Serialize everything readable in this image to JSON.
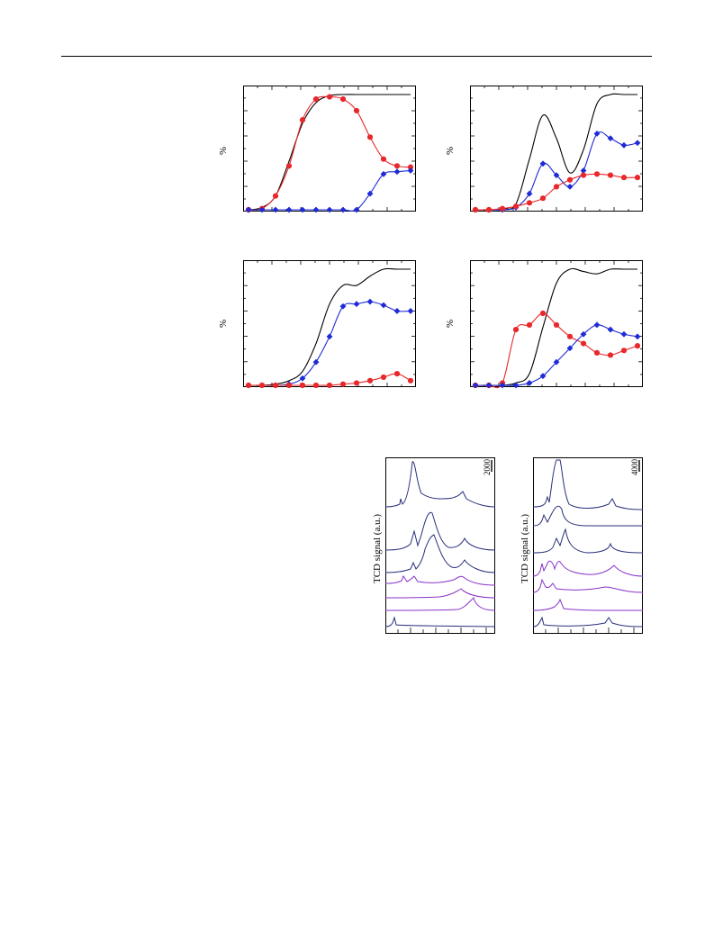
{
  "page": {
    "header_rule": true
  },
  "panels": {
    "p1": {
      "ylabel": "%"
    },
    "p2": {
      "ylabel": "%"
    },
    "p3": {
      "ylabel": "%"
    },
    "p4": {
      "ylabel": "%"
    },
    "tcd1": {
      "ylabel": "TCD signal (a.u.)",
      "scale": "2000"
    },
    "tcd2": {
      "ylabel": "TCD signal (a.u.)",
      "scale": "4000"
    }
  },
  "colors": {
    "red": "#e8282b",
    "blue": "#1f2bd6",
    "black": "#000000",
    "navy": "#28307a",
    "purple": "#8a32c8"
  },
  "chart_data": [
    {
      "type": "line",
      "id": "p1",
      "ylabel": "%",
      "xlim": [
        0,
        12
      ],
      "ylim": [
        0,
        100
      ],
      "series": [
        {
          "color": "black",
          "markers": "none",
          "x": [
            0,
            1,
            2,
            3,
            4,
            5,
            6,
            7,
            8,
            9,
            10,
            11,
            12
          ],
          "values": [
            0,
            2,
            12,
            42,
            75,
            93,
            99,
            100,
            100,
            100,
            100,
            100,
            100
          ]
        },
        {
          "color": "red",
          "markers": "circle",
          "x": [
            0,
            1,
            2,
            3,
            4,
            5,
            6,
            7,
            8,
            9,
            10,
            11,
            12
          ],
          "values": [
            0,
            1,
            12,
            38,
            78,
            96,
            98,
            96,
            86,
            63,
            44,
            38,
            37
          ]
        },
        {
          "color": "blue",
          "markers": "diamond",
          "x": [
            0,
            1,
            2,
            3,
            4,
            5,
            6,
            7,
            8,
            9,
            10,
            11,
            12
          ],
          "values": [
            0,
            0,
            0,
            0,
            0,
            0,
            0,
            0,
            0,
            14,
            31,
            33,
            34
          ]
        }
      ]
    },
    {
      "type": "line",
      "id": "p2",
      "ylabel": "%",
      "xlim": [
        0,
        12
      ],
      "ylim": [
        0,
        100
      ],
      "series": [
        {
          "color": "black",
          "markers": "none",
          "x": [
            0,
            1,
            2,
            3,
            4,
            5,
            6,
            7,
            8,
            9,
            10,
            11,
            12
          ],
          "values": [
            0,
            0,
            1,
            5,
            44,
            82,
            62,
            32,
            52,
            92,
            100,
            100,
            100
          ]
        },
        {
          "color": "blue",
          "markers": "diamond",
          "x": [
            0,
            1,
            2,
            3,
            4,
            5,
            6,
            7,
            8,
            9,
            10,
            11,
            12
          ],
          "values": [
            0,
            0,
            0,
            2,
            14,
            40,
            30,
            20,
            34,
            66,
            62,
            56,
            58
          ]
        },
        {
          "color": "red",
          "markers": "circle",
          "x": [
            0,
            1,
            2,
            3,
            4,
            5,
            6,
            7,
            8,
            9,
            10,
            11,
            12
          ],
          "values": [
            0,
            0,
            1,
            3,
            6,
            10,
            20,
            26,
            30,
            31,
            30,
            28,
            28
          ]
        }
      ]
    },
    {
      "type": "line",
      "id": "p3",
      "ylabel": "%",
      "xlim": [
        0,
        12
      ],
      "ylim": [
        0,
        100
      ],
      "series": [
        {
          "color": "black",
          "markers": "none",
          "x": [
            0,
            1,
            2,
            3,
            4,
            5,
            6,
            7,
            8,
            9,
            10,
            11,
            12
          ],
          "values": [
            0,
            0,
            1,
            4,
            12,
            36,
            70,
            86,
            86,
            94,
            100,
            100,
            100
          ]
        },
        {
          "color": "blue",
          "markers": "diamond",
          "x": [
            0,
            1,
            2,
            3,
            4,
            5,
            6,
            7,
            8,
            9,
            10,
            11,
            12
          ],
          "values": [
            0,
            0,
            0,
            1,
            6,
            20,
            42,
            68,
            70,
            72,
            69,
            64,
            64
          ]
        },
        {
          "color": "red",
          "markers": "circle",
          "x": [
            0,
            1,
            2,
            3,
            4,
            5,
            6,
            7,
            8,
            9,
            10,
            11,
            12
          ],
          "values": [
            0,
            0,
            0,
            0,
            0,
            0,
            0,
            1,
            2,
            4,
            7,
            10,
            4
          ]
        }
      ]
    },
    {
      "type": "line",
      "id": "p4",
      "ylabel": "%",
      "xlim": [
        0,
        12
      ],
      "ylim": [
        0,
        100
      ],
      "series": [
        {
          "color": "black",
          "markers": "none",
          "x": [
            0,
            1,
            2,
            3,
            4,
            5,
            6,
            7,
            8,
            9,
            10,
            11,
            12
          ],
          "values": [
            0,
            0,
            0,
            2,
            10,
            50,
            88,
            100,
            98,
            96,
            100,
            100,
            100
          ]
        },
        {
          "color": "red",
          "markers": "circle",
          "x": [
            0,
            1,
            2,
            3,
            4,
            5,
            6,
            7,
            8,
            9,
            10,
            11,
            12
          ],
          "values": [
            0,
            0,
            2,
            48,
            52,
            62,
            52,
            42,
            36,
            28,
            26,
            30,
            34
          ]
        },
        {
          "color": "blue",
          "markers": "diamond",
          "x": [
            0,
            1,
            2,
            3,
            4,
            5,
            6,
            7,
            8,
            9,
            10,
            11,
            12
          ],
          "values": [
            0,
            0,
            0,
            0,
            2,
            8,
            20,
            32,
            44,
            52,
            48,
            44,
            42
          ]
        }
      ]
    }
  ]
}
